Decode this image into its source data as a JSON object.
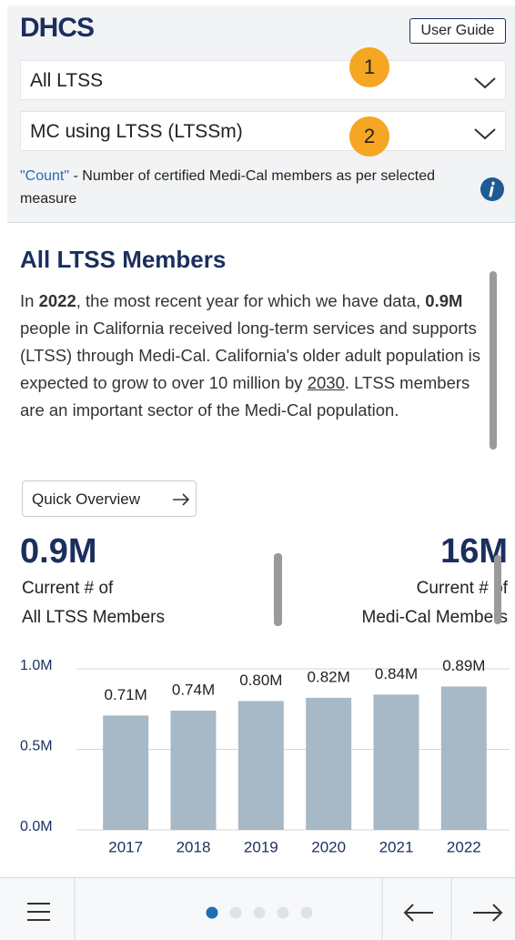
{
  "header": {
    "logo": "DHCS",
    "user_guide": "User Guide"
  },
  "filters": {
    "dropdown_1": "All LTSS",
    "badge_1": "1",
    "dropdown_2": "MC using LTSS (LTSSm)",
    "badge_2": "2",
    "note": [
      "\"Count\"",
      " - Number of certified Medi-Cal members as per selected measure"
    ]
  },
  "content": {
    "title": "All LTSS Members",
    "intro": [
      "In ",
      "2022",
      ", the most recent year for which we have data, ",
      "0.9M",
      " people in California received long-term services and supports (LTSS) through Medi-Cal. California's older adult population is expected to grow to over 10 million by ",
      "2030",
      ". LTSS members are an important sector of the Medi-Cal population."
    ],
    "button": "Quick Overview",
    "kpis": [
      {
        "value": "0.9M",
        "label_1": "Current # of",
        "label_2": "All LTSS Members"
      },
      {
        "value": "16M",
        "label_1": "Current # of",
        "label_2": "Medi-Cal Members"
      }
    ]
  },
  "chart_data": {
    "type": "bar",
    "categories": [
      "2017",
      "2018",
      "2019",
      "2020",
      "2021",
      "2022"
    ],
    "values": [
      710000,
      740000,
      800000,
      820000,
      840000,
      890000
    ],
    "value_labels": [
      "0.71M",
      "0.74M",
      "0.80M",
      "0.82M",
      "0.84M",
      "0.89M"
    ],
    "color": "#a7b8c6",
    "ylim": [
      0,
      1000000
    ],
    "yticks": [
      {
        "value": 0,
        "label": "0.0M"
      },
      {
        "value": 500000,
        "label": "0.5M"
      },
      {
        "value": 1000000,
        "label": "1.0M"
      }
    ],
    "grid": true
  }
}
